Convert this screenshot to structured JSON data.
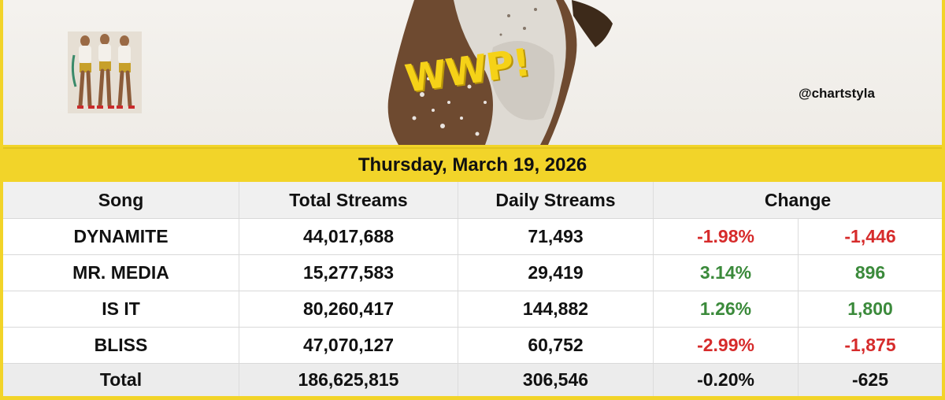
{
  "banner": {
    "logo_text": "WWP!",
    "handle": "@chartstyla",
    "colors": {
      "accent": "#f2d429",
      "negative": "#d62b2b",
      "positive": "#3b8a3b"
    }
  },
  "date": "Thursday, March 19, 2026",
  "table": {
    "headers": {
      "song": "Song",
      "total": "Total Streams",
      "daily": "Daily Streams",
      "change": "Change"
    },
    "rows": [
      {
        "song": "DYNAMITE",
        "total": "44,017,688",
        "daily": "71,493",
        "pct": "-1.98%",
        "abs": "-1,446",
        "trend": "neg"
      },
      {
        "song": "MR. MEDIA",
        "total": "15,277,583",
        "daily": "29,419",
        "pct": "3.14%",
        "abs": "896",
        "trend": "pos"
      },
      {
        "song": "IS IT",
        "total": "80,260,417",
        "daily": "144,882",
        "pct": "1.26%",
        "abs": "1,800",
        "trend": "pos"
      },
      {
        "song": "BLISS",
        "total": "47,070,127",
        "daily": "60,752",
        "pct": "-2.99%",
        "abs": "-1,875",
        "trend": "neg"
      }
    ],
    "total": {
      "song": "Total",
      "total": "186,625,815",
      "daily": "306,546",
      "pct": "-0.20%",
      "abs": "-625"
    }
  }
}
